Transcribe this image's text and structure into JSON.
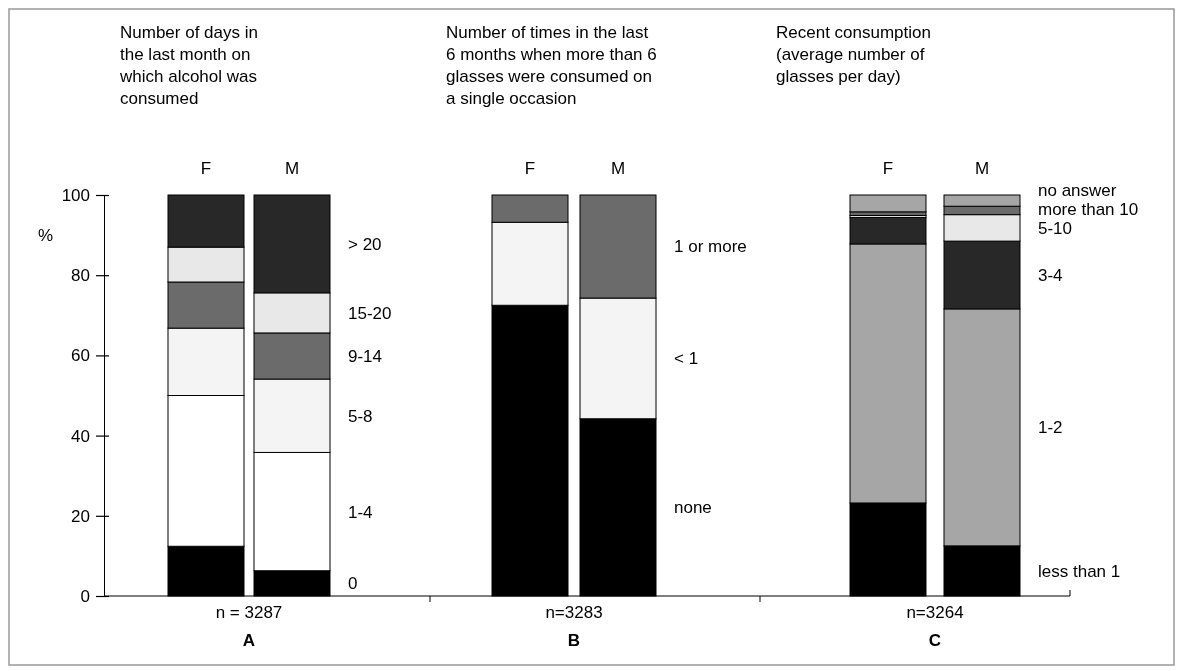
{
  "chart_data": [
    {
      "type": "bar",
      "stacked": true,
      "title": "Number of days in the last month on which alcohol was consumed",
      "ylabel": "%",
      "xlabel": "n = 3287",
      "annotations": [
        "A"
      ],
      "categories": [
        "F",
        "M"
      ],
      "ylim": [
        0,
        100
      ],
      "yticks": [
        0,
        20,
        40,
        60,
        80,
        100
      ],
      "series": [
        {
          "name": "0",
          "color": "#000000",
          "values": [
            12.4,
            6.3
          ]
        },
        {
          "name": "1-4",
          "color": "#ffffff",
          "values": [
            37.6,
            29.5
          ]
        },
        {
          "name": "5-8",
          "color": "#f4f4f4",
          "values": [
            16.8,
            18.3
          ]
        },
        {
          "name": "9-14",
          "color": "#6b6b6b",
          "values": [
            11.5,
            11.5
          ]
        },
        {
          "name": "15-20",
          "color": "#e8e8e8",
          "values": [
            8.7,
            10.0
          ]
        },
        {
          "name": "> 20",
          "color": "#282828",
          "values": [
            13.0,
            24.4
          ]
        }
      ]
    },
    {
      "type": "bar",
      "stacked": true,
      "title": "Number of times in the last 6 months when more than 6 glasses were consumed on a single occasion",
      "xlabel": "n=3283",
      "annotations": [
        "B"
      ],
      "categories": [
        "F",
        "M"
      ],
      "ylim": [
        0,
        100
      ],
      "tick_labels": "x",
      "series": [
        {
          "name": "none",
          "color": "#000000",
          "values": [
            72.5,
            44.2
          ]
        },
        {
          "name": "< 1",
          "color": "#f4f4f4",
          "values": [
            20.7,
            30.1
          ]
        },
        {
          "name": "1 or more",
          "color": "#6b6b6b",
          "values": [
            6.8,
            25.7
          ]
        }
      ]
    },
    {
      "type": "bar",
      "stacked": true,
      "title": "Recent consumption (average number of glasses per day)",
      "xlabel": "n=3264",
      "annotations": [
        "C"
      ],
      "categories": [
        "F",
        "M"
      ],
      "ylim": [
        0,
        100
      ],
      "tick_labels": "x",
      "series": [
        {
          "name": "less than 1",
          "color": "#000000",
          "values": [
            23.2,
            12.5
          ]
        },
        {
          "name": "1-2",
          "color": "#a6a6a6",
          "values": [
            64.6,
            59.1
          ]
        },
        {
          "name": "3-4",
          "color": "#282828",
          "values": [
            6.6,
            16.9
          ]
        },
        {
          "name": "5-10",
          "color": "#e8e8e8",
          "values": [
            0.5,
            6.6
          ]
        },
        {
          "name": "more than 10",
          "color": "#6b6b6b",
          "values": [
            0.9,
            2.1
          ]
        },
        {
          "name": "no answer",
          "color": "#a6a6a6",
          "values": [
            4.2,
            2.8
          ]
        }
      ]
    }
  ]
}
